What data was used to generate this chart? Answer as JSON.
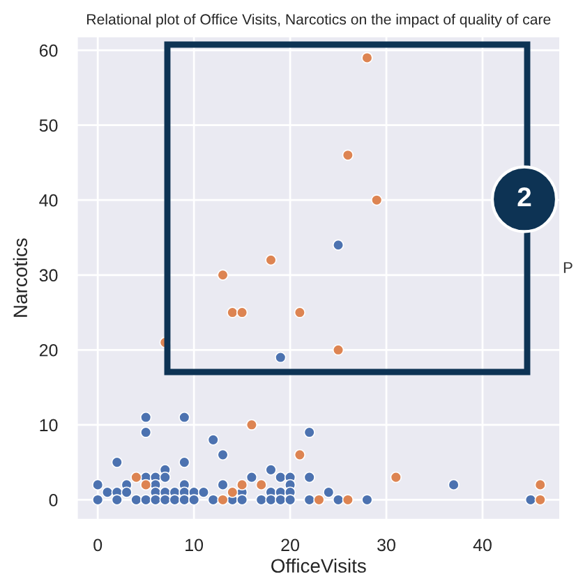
{
  "chart_data": {
    "type": "scatter",
    "title": "Relational plot of Office Visits, Narcotics on the impact of quality of care",
    "xlabel": "OfficeVisits",
    "ylabel": "Narcotics",
    "xlim": [
      -2.2,
      48.1
    ],
    "ylim": [
      -2.7,
      61.9
    ],
    "xticks": [
      0,
      10,
      20,
      30,
      40
    ],
    "yticks": [
      0,
      10,
      20,
      30,
      40,
      50,
      60
    ],
    "grid": true,
    "marker": "circle",
    "annotations": [
      "2",
      "P"
    ],
    "series": [
      {
        "color": "#4c72b0",
        "x": [
          0,
          0,
          1,
          2,
          2,
          2,
          3,
          3,
          4,
          5,
          5,
          5,
          5,
          6,
          6,
          6,
          6,
          7,
          7,
          7,
          7,
          8,
          8,
          9,
          9,
          9,
          9,
          9,
          10,
          10,
          11,
          12,
          12,
          13,
          13,
          14,
          15,
          15,
          16,
          17,
          18,
          18,
          18,
          19,
          19,
          19,
          20,
          20,
          20,
          20,
          22,
          22,
          22,
          24,
          25,
          28,
          37,
          45,
          25,
          19
        ],
        "values": [
          2,
          0,
          1,
          5,
          1,
          0,
          2,
          1,
          0,
          11,
          9,
          3,
          0,
          3,
          2,
          1,
          0,
          4,
          3,
          1,
          0,
          1,
          0,
          11,
          5,
          2,
          1,
          0,
          1,
          0,
          1,
          8,
          0,
          6,
          2,
          0,
          1,
          0,
          3,
          0,
          4,
          1,
          0,
          3,
          1,
          0,
          3,
          2,
          1,
          0,
          9,
          3,
          0,
          1,
          0,
          0,
          2,
          0,
          34,
          19
        ]
      },
      {
        "color": "#dd8452",
        "x": [
          4,
          5,
          13,
          14,
          15,
          16,
          17,
          21,
          23,
          26,
          31,
          46,
          46,
          28,
          26,
          29,
          18,
          13,
          14,
          15,
          21,
          7,
          25
        ],
        "values": [
          3,
          2,
          0,
          1,
          2,
          10,
          2,
          6,
          0,
          0,
          3,
          2,
          0,
          59,
          46,
          40,
          32,
          30,
          25,
          25,
          25,
          21,
          20
        ]
      }
    ]
  }
}
